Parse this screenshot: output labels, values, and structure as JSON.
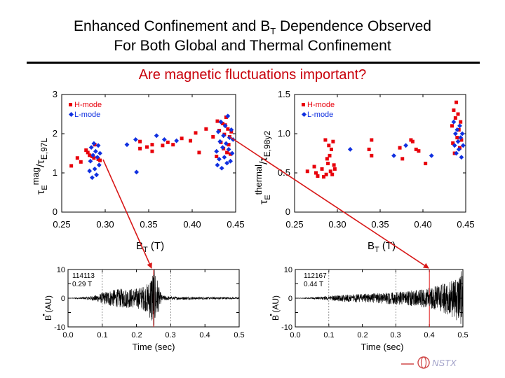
{
  "slide": {
    "title_line1_a": "Enhanced Confinement and B",
    "title_line1_sub": "T",
    "title_line1_b": " Dependence Observed",
    "title_line2": "For Both Global and Thermal Confinement",
    "subtitle": "Are magnetic fluctuations important?",
    "logo_text": "NSTX"
  },
  "colors": {
    "hmode": "#e8000b",
    "lmode": "#1030e0",
    "subtitle": "#c8000a",
    "arrow": "#d81818",
    "marker_line": "#e02020"
  },
  "chart_data": [
    {
      "type": "scatter",
      "ylabel_main": "τ",
      "ylabel_sup1": "E",
      "ylabel_sup2": "mag",
      "ylabel_rest": "/τ",
      "ylabel_sub": "E,97L",
      "xlabel_main": "B",
      "xlabel_sub": "T",
      "xlabel_unit": " (T)",
      "xlim": [
        0.25,
        0.45
      ],
      "ylim": [
        0,
        3
      ],
      "xticks": [
        "0.25",
        "0.30",
        "0.35",
        "0.40",
        "0.45"
      ],
      "yticks": [
        "0",
        "1",
        "2",
        "3"
      ],
      "legend_position": "top-left",
      "series": [
        {
          "name": "H-mode",
          "marker": "square",
          "points": [
            [
              0.261,
              1.18
            ],
            [
              0.268,
              1.38
            ],
            [
              0.272,
              1.28
            ],
            [
              0.278,
              1.58
            ],
            [
              0.28,
              1.52
            ],
            [
              0.282,
              1.45
            ],
            [
              0.285,
              1.42
            ],
            [
              0.287,
              1.38
            ],
            [
              0.288,
              1.72
            ],
            [
              0.292,
              1.35
            ],
            [
              0.294,
              1.32
            ],
            [
              0.34,
              1.8
            ],
            [
              0.34,
              1.62
            ],
            [
              0.348,
              1.66
            ],
            [
              0.354,
              1.72
            ],
            [
              0.354,
              1.55
            ],
            [
              0.366,
              1.7
            ],
            [
              0.372,
              1.78
            ],
            [
              0.378,
              1.72
            ],
            [
              0.388,
              1.88
            ],
            [
              0.398,
              1.82
            ],
            [
              0.404,
              2.02
            ],
            [
              0.408,
              1.52
            ],
            [
              0.416,
              2.12
            ],
            [
              0.424,
              1.92
            ],
            [
              0.428,
              1.42
            ],
            [
              0.429,
              2.32
            ],
            [
              0.431,
              2.08
            ],
            [
              0.433,
              1.78
            ],
            [
              0.435,
              2.26
            ],
            [
              0.436,
              1.62
            ],
            [
              0.437,
              1.98
            ],
            [
              0.438,
              2.22
            ],
            [
              0.439,
              2.42
            ],
            [
              0.44,
              1.52
            ],
            [
              0.441,
              2.12
            ],
            [
              0.442,
              1.72
            ],
            [
              0.443,
              1.92
            ],
            [
              0.444,
              1.48
            ],
            [
              0.445,
              2.05
            ]
          ]
        },
        {
          "name": "L-mode",
          "marker": "diamond",
          "points": [
            [
              0.282,
              1.05
            ],
            [
              0.283,
              1.3
            ],
            [
              0.284,
              1.65
            ],
            [
              0.285,
              0.88
            ],
            [
              0.286,
              1.45
            ],
            [
              0.287,
              1.75
            ],
            [
              0.288,
              1.1
            ],
            [
              0.289,
              1.55
            ],
            [
              0.29,
              0.95
            ],
            [
              0.291,
              1.4
            ],
            [
              0.292,
              1.7
            ],
            [
              0.293,
              1.2
            ],
            [
              0.294,
              1.5
            ],
            [
              0.325,
              1.72
            ],
            [
              0.335,
              1.85
            ],
            [
              0.336,
              1.02
            ],
            [
              0.359,
              1.95
            ],
            [
              0.368,
              1.85
            ],
            [
              0.382,
              1.82
            ],
            [
              0.428,
              1.55
            ],
            [
              0.429,
              1.2
            ],
            [
              0.43,
              2.05
            ],
            [
              0.431,
              1.35
            ],
            [
              0.432,
              1.8
            ],
            [
              0.433,
              2.3
            ],
            [
              0.434,
              1.12
            ],
            [
              0.435,
              1.65
            ],
            [
              0.436,
              1.95
            ],
            [
              0.437,
              1.4
            ],
            [
              0.438,
              2.2
            ],
            [
              0.439,
              1.75
            ],
            [
              0.44,
              1.25
            ],
            [
              0.441,
              2.45
            ],
            [
              0.442,
              1.6
            ],
            [
              0.443,
              1.9
            ],
            [
              0.444,
              1.3
            ],
            [
              0.445,
              2.1
            ],
            [
              0.446,
              1.5
            ],
            [
              0.447,
              1.85
            ]
          ]
        }
      ]
    },
    {
      "type": "scatter",
      "ylabel_main": "τ",
      "ylabel_sup1": "E",
      "ylabel_sup2": "thermal",
      "ylabel_rest": "/τ",
      "ylabel_sub": "E,98y2",
      "xlabel_main": "B",
      "xlabel_sub": "T",
      "xlabel_unit": " (T)",
      "xlim": [
        0.25,
        0.45
      ],
      "ylim": [
        0,
        1.5
      ],
      "xticks": [
        "0.25",
        "0.30",
        "0.35",
        "0.40",
        "0.45"
      ],
      "yticks": [
        "0",
        "0.5",
        "1.0",
        "1.5"
      ],
      "legend_position": "top-left",
      "series": [
        {
          "name": "H-mode",
          "marker": "square",
          "points": [
            [
              0.265,
              0.52
            ],
            [
              0.273,
              0.58
            ],
            [
              0.275,
              0.5
            ],
            [
              0.277,
              0.46
            ],
            [
              0.282,
              0.55
            ],
            [
              0.284,
              0.45
            ],
            [
              0.286,
              0.92
            ],
            [
              0.287,
              0.48
            ],
            [
              0.288,
              0.68
            ],
            [
              0.289,
              0.62
            ],
            [
              0.29,
              0.85
            ],
            [
              0.291,
              0.72
            ],
            [
              0.292,
              0.52
            ],
            [
              0.293,
              0.8
            ],
            [
              0.294,
              0.48
            ],
            [
              0.295,
              0.9
            ],
            [
              0.296,
              0.6
            ],
            [
              0.297,
              0.55
            ],
            [
              0.337,
              0.8
            ],
            [
              0.34,
              0.92
            ],
            [
              0.34,
              0.72
            ],
            [
              0.373,
              0.82
            ],
            [
              0.376,
              0.68
            ],
            [
              0.386,
              0.92
            ],
            [
              0.388,
              0.9
            ],
            [
              0.392,
              0.8
            ],
            [
              0.395,
              0.78
            ],
            [
              0.403,
              0.62
            ],
            [
              0.434,
              1.1
            ],
            [
              0.435,
              0.88
            ],
            [
              0.436,
              1.3
            ],
            [
              0.437,
              0.75
            ],
            [
              0.438,
              1.2
            ],
            [
              0.439,
              1.4
            ],
            [
              0.44,
              0.95
            ],
            [
              0.441,
              1.25
            ],
            [
              0.442,
              1.05
            ],
            [
              0.443,
              0.82
            ],
            [
              0.444,
              1.15
            ],
            [
              0.445,
              0.92
            ]
          ]
        },
        {
          "name": "L-mode",
          "marker": "diamond",
          "points": [
            [
              0.315,
              0.8
            ],
            [
              0.366,
              0.72
            ],
            [
              0.38,
              0.85
            ],
            [
              0.41,
              0.72
            ],
            [
              0.436,
              1.15
            ],
            [
              0.437,
              0.85
            ],
            [
              0.438,
              1.0
            ],
            [
              0.439,
              0.75
            ],
            [
              0.44,
              1.05
            ],
            [
              0.441,
              0.9
            ],
            [
              0.442,
              0.8
            ],
            [
              0.443,
              1.1
            ],
            [
              0.444,
              0.95
            ],
            [
              0.445,
              0.7
            ],
            [
              0.446,
              1.0
            ],
            [
              0.447,
              0.85
            ]
          ]
        }
      ]
    },
    {
      "type": "line",
      "shot": "114113",
      "bt": "0.29 T",
      "ylabel_dot": "·",
      "ylabel": "B (AU)",
      "xlabel": "Time (sec)",
      "xlim": [
        0.0,
        0.5
      ],
      "ylim": [
        -10,
        10
      ],
      "xticks": [
        "0.0",
        "0.1",
        "0.2",
        "0.3",
        "0.4",
        "0.5"
      ],
      "yticks": [
        "10",
        "0",
        "-10"
      ],
      "marker_time": 0.25,
      "envelope": [
        [
          0.0,
          0.0
        ],
        [
          0.04,
          0.3
        ],
        [
          0.08,
          1.0
        ],
        [
          0.12,
          2.8
        ],
        [
          0.16,
          3.4
        ],
        [
          0.2,
          3.5
        ],
        [
          0.225,
          4.5
        ],
        [
          0.235,
          5.5
        ],
        [
          0.245,
          10
        ],
        [
          0.255,
          10
        ],
        [
          0.262,
          6.5
        ],
        [
          0.268,
          2.5
        ],
        [
          0.275,
          1.0
        ],
        [
          0.3,
          0.6
        ],
        [
          0.35,
          0.5
        ],
        [
          0.4,
          0.4
        ],
        [
          0.45,
          0.4
        ],
        [
          0.5,
          0.3
        ]
      ]
    },
    {
      "type": "line",
      "shot": "112167",
      "bt": "0.44 T",
      "ylabel_dot": "·",
      "ylabel": "B (AU)",
      "xlabel": "Time (sec)",
      "xlim": [
        0.0,
        0.5
      ],
      "ylim": [
        -10,
        10
      ],
      "xticks": [
        "0.0",
        "0.1",
        "0.2",
        "0.3",
        "0.4",
        "0.5"
      ],
      "yticks": [
        "10",
        "0",
        "-10"
      ],
      "marker_time": 0.4,
      "envelope": [
        [
          0.0,
          0.0
        ],
        [
          0.04,
          0.2
        ],
        [
          0.08,
          0.5
        ],
        [
          0.12,
          1.0
        ],
        [
          0.16,
          1.3
        ],
        [
          0.2,
          1.5
        ],
        [
          0.25,
          1.8
        ],
        [
          0.3,
          2.2
        ],
        [
          0.34,
          2.6
        ],
        [
          0.37,
          3.0
        ],
        [
          0.4,
          3.6
        ],
        [
          0.43,
          4.5
        ],
        [
          0.46,
          6.0
        ],
        [
          0.48,
          8.0
        ],
        [
          0.5,
          10
        ]
      ]
    }
  ]
}
